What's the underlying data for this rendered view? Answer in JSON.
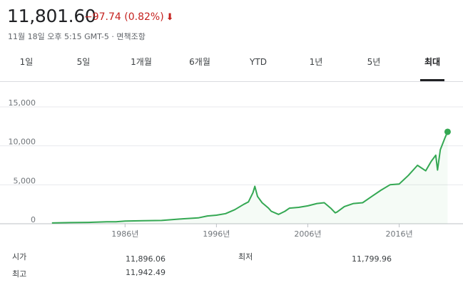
{
  "quote": {
    "price": "11,801.60",
    "change": "−97.74 (0.82%)",
    "change_arrow": "arrow-down-icon",
    "subtitle": "11월 18일 오후 5:15 GMT-5 · 면책조항",
    "negative_color": "#c5221f"
  },
  "tabs": [
    {
      "label": "1일"
    },
    {
      "label": "5일"
    },
    {
      "label": "1개월"
    },
    {
      "label": "6개월"
    },
    {
      "label": "YTD"
    },
    {
      "label": "1년"
    },
    {
      "label": "5년"
    },
    {
      "label": "최대",
      "active": true
    }
  ],
  "chart_data": {
    "type": "line",
    "color": "#34a853",
    "ylim": [
      0,
      15000
    ],
    "yticks": [
      "15,000",
      "10,000",
      "5,000",
      "0"
    ],
    "ytick_values": [
      15000,
      10000,
      5000,
      0
    ],
    "xticks": [
      "1986년",
      "1996년",
      "2006년",
      "2016년"
    ],
    "xtick_values": [
      1986,
      1996,
      2006,
      2016
    ],
    "xlim": [
      1977,
      2021.5
    ],
    "series": [
      {
        "x": [
          1978,
          1980,
          1982,
          1984,
          1985,
          1986,
          1988,
          1990,
          1992,
          1994,
          1995,
          1996,
          1997,
          1998,
          1999,
          1999.5,
          2000,
          2000.2,
          2000.5,
          2001,
          2001.7,
          2002,
          2002.8,
          2003.5,
          2004,
          2005,
          2006,
          2007,
          2007.8,
          2008.5,
          2009,
          2009.2,
          2010,
          2011,
          2012,
          2013,
          2014,
          2015,
          2016,
          2017,
          2018,
          2018.9,
          2019.5,
          2020,
          2020.2,
          2020.5,
          2021,
          2021.3
        ],
        "values": [
          100,
          150,
          170,
          250,
          260,
          350,
          380,
          420,
          600,
          750,
          1000,
          1100,
          1300,
          1800,
          2500,
          2800,
          4000,
          4800,
          3500,
          2700,
          2000,
          1600,
          1200,
          1600,
          2000,
          2100,
          2300,
          2600,
          2700,
          2000,
          1400,
          1500,
          2200,
          2600,
          2700,
          3500,
          4300,
          5000,
          5100,
          6200,
          7500,
          6800,
          8000,
          8800,
          6900,
          9500,
          11000,
          11800
        ]
      }
    ],
    "last_value": 11801.6
  },
  "stats": {
    "open_label": "시가",
    "open_value": "11,896.06",
    "low_label": "최저",
    "low_value": "11,799.96",
    "high_label": "최고",
    "high_value": "11,942.49"
  }
}
